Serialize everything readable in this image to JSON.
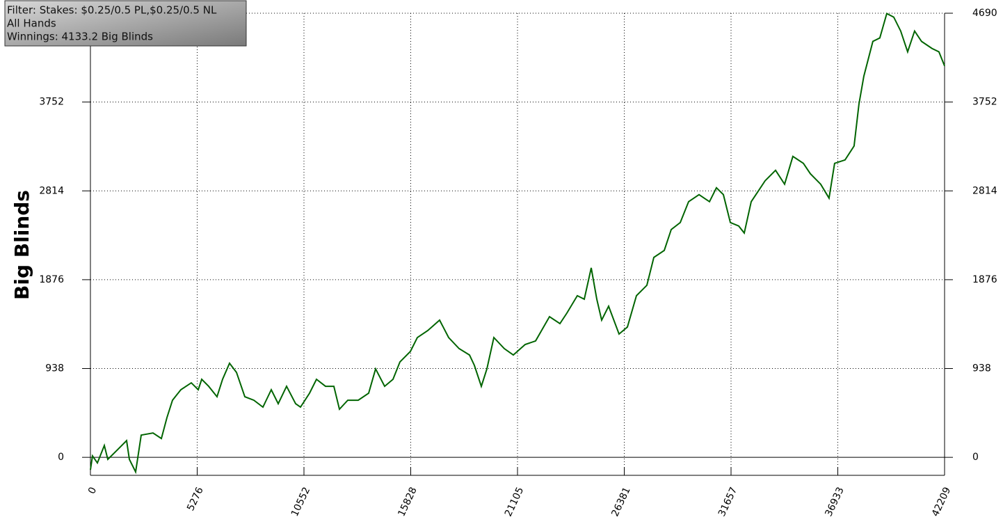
{
  "chart_data": {
    "type": "line",
    "y_label": "Big Blinds",
    "annotations": [
      "Filter: Stakes: $0.25/0.5 PL,$0.25/0.5 NL",
      "All Hands",
      "Winnings: 4133.2 Big Blinds"
    ],
    "xlim": [
      0,
      42209
    ],
    "xticks": [
      0,
      5276,
      10552,
      15828,
      21105,
      26381,
      31657,
      36933,
      42209
    ],
    "ylim": [
      -190,
      4690
    ],
    "yticks": [
      0,
      938,
      1876,
      2814,
      3752,
      4690
    ],
    "grid": true,
    "series": [
      {
        "color": "#006400",
        "x": [
          0,
          103,
          344,
          687,
          859,
          1375,
          1787,
          1925,
          2234,
          2509,
          3093,
          3506,
          3781,
          4056,
          4468,
          4984,
          5328,
          5500,
          5843,
          6256,
          6531,
          6875,
          7218,
          7631,
          8078,
          8524,
          8937,
          9281,
          9693,
          10140,
          10380,
          10827,
          11171,
          11618,
          12030,
          12305,
          12718,
          13233,
          13749,
          14093,
          14540,
          14952,
          15296,
          15811,
          16155,
          16671,
          17255,
          17702,
          18218,
          18733,
          18974,
          19318,
          19593,
          19936,
          20452,
          20899,
          21483,
          21999,
          22686,
          23202,
          23545,
          24061,
          24404,
          24748,
          25023,
          25264,
          25607,
          26123,
          26535,
          26982,
          27497,
          27841,
          28357,
          28700,
          29147,
          29559,
          30075,
          30590,
          30934,
          31278,
          31621,
          32034,
          32309,
          32652,
          32996,
          33340,
          33855,
          34302,
          34714,
          35230,
          35574,
          36089,
          36501,
          36776,
          37292,
          37738,
          37979,
          38220,
          38666,
          39010,
          39353,
          39697,
          40041,
          40384,
          40728,
          41072,
          41587,
          41931,
          42209
        ],
        "values": [
          -132,
          15,
          -59,
          125,
          -22,
          88,
          177,
          -22,
          -154,
          235,
          257,
          199,
          419,
          603,
          714,
          787,
          714,
          824,
          750,
          640,
          824,
          993,
          897,
          640,
          603,
          530,
          714,
          566,
          750,
          566,
          530,
          677,
          824,
          750,
          750,
          508,
          603,
          603,
          677,
          934,
          750,
          824,
          1008,
          1118,
          1265,
          1339,
          1449,
          1265,
          1148,
          1081,
          971,
          750,
          934,
          1265,
          1148,
          1081,
          1192,
          1229,
          1486,
          1412,
          1523,
          1707,
          1670,
          2001,
          1670,
          1449,
          1596,
          1302,
          1376,
          1707,
          1817,
          2111,
          2185,
          2406,
          2479,
          2700,
          2774,
          2700,
          2847,
          2774,
          2479,
          2443,
          2369,
          2700,
          2810,
          2921,
          3031,
          2884,
          3178,
          3105,
          2995,
          2884,
          2737,
          3105,
          3141,
          3288,
          3730,
          4024,
          4392,
          4429,
          4686,
          4649,
          4502,
          4282,
          4502,
          4392,
          4318,
          4282,
          4133.2
        ]
      }
    ]
  }
}
